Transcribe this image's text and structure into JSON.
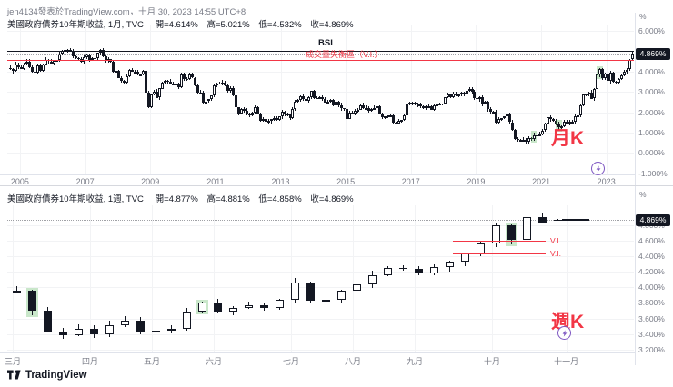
{
  "header": {
    "byline": "jen4134發表於TradingView.com，十月 30, 2023 14:55 UTC+8"
  },
  "footer": {
    "brand": "TradingView"
  },
  "icons": {
    "publish_marker": "lightning-in-circle",
    "brand_mark": "tradingview-logo"
  },
  "colors": {
    "text": "#131722",
    "muted": "#787b86",
    "grid": "#f2f3f5",
    "red": "#f23645",
    "purple": "#7e57c2",
    "vi_green": "rgba(76,175,80,0.3)",
    "tag_bg": "#131722",
    "tag_text": "#ffffff",
    "up_fill": "#ffffff",
    "down_fill": "#131722",
    "border": "#e0e3eb"
  },
  "chart_data": [
    {
      "type": "candlestick",
      "pane": "monthly",
      "pane_label": "月K",
      "interval": "1M",
      "start": "2004-09",
      "legend": {
        "title": "美國政府債券10年期收益, 1月, TVC",
        "open": "開=4.614%",
        "high": "高=5.021%",
        "low": "低=4.532%",
        "close": "收=4.869%"
      },
      "first_open": 4.18,
      "closes": [
        4.12,
        4.02,
        4.36,
        4.22,
        4.13,
        4.36,
        4.48,
        4.2,
        4.0,
        3.94,
        4.28,
        4.02,
        4.33,
        4.57,
        4.49,
        4.39,
        4.53,
        4.55,
        4.85,
        4.99,
        5.03,
        5.06,
        4.99,
        4.73,
        4.63,
        4.61,
        4.46,
        4.71,
        4.83,
        4.56,
        4.65,
        4.63,
        4.9,
        5.03,
        4.74,
        4.54,
        4.59,
        4.48,
        3.97,
        4.04,
        3.67,
        3.53,
        3.45,
        3.77,
        4.06,
        3.99,
        3.99,
        3.83,
        3.85,
        4.01,
        2.96,
        2.25,
        2.87,
        3.02,
        2.71,
        3.16,
        3.47,
        3.53,
        3.5,
        3.4,
        3.31,
        3.39,
        3.21,
        3.85,
        3.63,
        3.61,
        3.84,
        3.69,
        3.31,
        2.97,
        2.94,
        2.47,
        2.53,
        2.63,
        2.81,
        3.3,
        3.42,
        3.41,
        3.45,
        3.32,
        3.05,
        3.18,
        2.82,
        2.23,
        1.92,
        2.17,
        2.08,
        1.89,
        1.83,
        1.98,
        2.23,
        1.95,
        1.59,
        1.67,
        1.51,
        1.57,
        1.65,
        1.72,
        1.62,
        1.78,
        2.02,
        1.89,
        1.87,
        1.7,
        2.16,
        2.52,
        2.6,
        2.78,
        2.64,
        2.57,
        2.75,
        3.04,
        2.67,
        2.66,
        2.73,
        2.65,
        2.48,
        2.53,
        2.58,
        2.35,
        2.52,
        2.35,
        2.18,
        2.17,
        1.68,
        2.0,
        1.94,
        2.05,
        2.12,
        2.35,
        2.2,
        2.22,
        2.06,
        2.16,
        2.22,
        2.27,
        1.94,
        1.74,
        1.78,
        1.83,
        1.84,
        1.49,
        1.46,
        1.58,
        1.61,
        1.84,
        2.37,
        2.45,
        2.45,
        2.36,
        2.4,
        2.29,
        2.21,
        2.3,
        2.3,
        2.12,
        2.33,
        2.38,
        2.42,
        2.4,
        2.72,
        2.87,
        2.74,
        2.93,
        2.83,
        2.85,
        2.96,
        2.86,
        3.05,
        3.15,
        3.01,
        2.69,
        2.63,
        2.73,
        2.41,
        2.51,
        2.14,
        2.0,
        2.02,
        1.5,
        1.68,
        1.69,
        1.78,
        1.92,
        1.51,
        1.13,
        0.7,
        0.64,
        0.65,
        0.66,
        0.55,
        0.72,
        0.69,
        0.88,
        0.84,
        0.93,
        1.11,
        1.44,
        1.74,
        1.65,
        1.58,
        1.45,
        1.24,
        1.3,
        1.52,
        1.55,
        1.43,
        1.52,
        1.79,
        1.83,
        2.32,
        2.89,
        2.85,
        2.98,
        2.67,
        3.15,
        3.83,
        4.1,
        3.68,
        3.88,
        3.52,
        3.92,
        3.49,
        3.44,
        3.64,
        3.81,
        3.97,
        4.09,
        4.57,
        4.869
      ],
      "last_ohlc": [
        4.614,
        5.021,
        4.532,
        4.869
      ],
      "current_price": 4.869,
      "price_tag": "4.869%",
      "y_axis": {
        "unit": "%",
        "range": [
          -1.05,
          6.25
        ],
        "ticks": [
          {
            "p": 6.0,
            "label": "6.000%"
          },
          {
            "p": 5.0,
            "label": ""
          },
          {
            "p": 4.0,
            "label": "4.000%"
          },
          {
            "p": 3.0,
            "label": "3.000%"
          },
          {
            "p": 2.0,
            "label": "2.000%"
          },
          {
            "p": 1.0,
            "label": "1.000%"
          },
          {
            "p": 0.0,
            "label": "0.000%"
          },
          {
            "p": -1.0,
            "label": "-1.000%"
          }
        ]
      },
      "x_labels": [
        {
          "i": 4,
          "label": "2005"
        },
        {
          "i": 28,
          "label": "2007"
        },
        {
          "i": 52,
          "label": "2009"
        },
        {
          "i": 76,
          "label": "2011"
        },
        {
          "i": 100,
          "label": "2013"
        },
        {
          "i": 124,
          "label": "2015"
        },
        {
          "i": 148,
          "label": "2017"
        },
        {
          "i": 172,
          "label": "2019"
        },
        {
          "i": 196,
          "label": "2021"
        },
        {
          "i": 220,
          "label": "2023"
        }
      ],
      "vi_highlights": [
        193,
        202,
        217
      ],
      "annotations": {
        "bsl": {
          "label": "BSL",
          "level": 5.02
        },
        "vi_line": {
          "label": "成交量失衡區（V.I.）",
          "level": 4.55
        }
      }
    },
    {
      "type": "candlestick",
      "pane": "weekly",
      "pane_label": "週K",
      "interval": "1W",
      "start": "2023-03-03",
      "legend": {
        "title": "美國政府債券10年期收益, 1週, TVC",
        "open": "開=4.877%",
        "high": "高=4.881%",
        "low": "低=4.858%",
        "close": "收=4.869%"
      },
      "first_open": 3.95,
      "closes": [
        3.96,
        3.7,
        3.43,
        3.38,
        3.47,
        3.39,
        3.51,
        3.57,
        3.42,
        3.44,
        3.46,
        3.69,
        3.8,
        3.69,
        3.74,
        3.77,
        3.74,
        3.84,
        4.06,
        3.83,
        3.84,
        3.96,
        4.04,
        4.16,
        4.25,
        4.24,
        4.18,
        4.26,
        4.33,
        4.44,
        4.57,
        4.8,
        4.61,
        4.91,
        4.84,
        4.869
      ],
      "last_ohlc": [
        4.877,
        4.881,
        4.858,
        4.869
      ],
      "current_price": 4.869,
      "price_tag": "4.869%",
      "y_axis": {
        "unit": "%",
        "range": [
          3.16,
          5.06
        ],
        "ticks": [
          {
            "p": 4.8,
            "label": "4.800%"
          },
          {
            "p": 4.6,
            "label": "4.600%"
          },
          {
            "p": 4.4,
            "label": "4.400%"
          },
          {
            "p": 4.2,
            "label": "4.200%"
          },
          {
            "p": 4.0,
            "label": "4.000%"
          },
          {
            "p": 3.8,
            "label": "3.800%"
          },
          {
            "p": 3.6,
            "label": "3.600%"
          },
          {
            "p": 3.4,
            "label": "3.400%"
          },
          {
            "p": 3.2,
            "label": "3.200%"
          }
        ]
      },
      "x_labels": [
        {
          "i": 0,
          "label": "三月"
        },
        {
          "i": 5,
          "label": "四月"
        },
        {
          "i": 9,
          "label": "五月"
        },
        {
          "i": 13,
          "label": "六月"
        },
        {
          "i": 18,
          "label": "七月"
        },
        {
          "i": 22,
          "label": "八月"
        },
        {
          "i": 26,
          "label": "九月"
        },
        {
          "i": 31,
          "label": "十月"
        },
        {
          "i": 35.8,
          "label": "十一月"
        }
      ],
      "vi_highlights": [
        1,
        12,
        32
      ],
      "annotations": {
        "vi_lines": [
          {
            "label": "V.I.",
            "level": 4.6
          },
          {
            "label": "V.I.",
            "level": 4.44
          }
        ]
      }
    }
  ]
}
